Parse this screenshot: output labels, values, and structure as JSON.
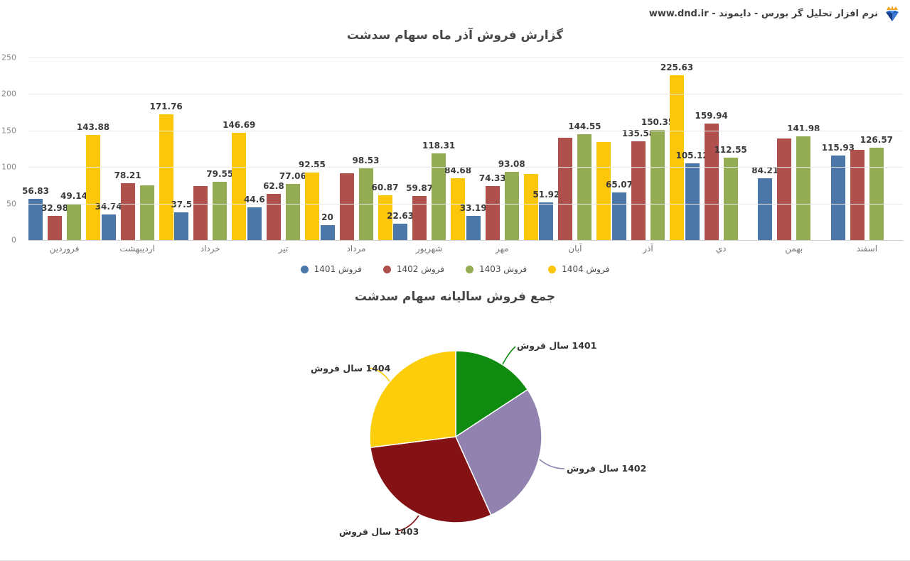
{
  "header": {
    "text": "نرم افزار تحلیل گر بورس - دایموند - www.dnd.ir",
    "logo": "diamond-crown-logo",
    "logo_colors": {
      "diamond": "#1f5fba",
      "facet": "#5a9bे3",
      "crown": "#f2a71b"
    }
  },
  "chart_data": [
    {
      "type": "bar",
      "title": "گزارش فروش آذر ماه سهام سدشت",
      "ylim": [
        0,
        250
      ],
      "y_ticks": [
        0,
        50,
        100,
        150,
        200,
        250
      ],
      "grid": "horizontal",
      "legend_position": "bottom",
      "categories": [
        "فروردین",
        "اردیبهشت",
        "خرداد",
        "تیر",
        "مرداد",
        "شهریور",
        "مهر",
        "آبان",
        "آذر",
        "دي",
        "بهمن",
        "اسفند"
      ],
      "series": [
        {
          "name": "فروش 1401",
          "color": "#4a77a8",
          "values": [
            56.83,
            34.74,
            37.5,
            44.6,
            20,
            22.63,
            33.19,
            51.92,
            65.07,
            105.12,
            84.21,
            115.93
          ],
          "labels": [
            "56.83",
            "34.74",
            "37.5",
            "44.6",
            "20",
            "22.63",
            "33.19",
            "51.92",
            "65.07",
            "105.12",
            "84.21",
            "115.93"
          ]
        },
        {
          "name": "فروش 1402",
          "color": "#b0504d",
          "values": [
            32.98,
            78.21,
            73.5,
            62.8,
            91,
            59.87,
            74.33,
            140.3,
            135.58,
            159.94,
            139.5,
            123.5
          ],
          "labels": [
            "32.98",
            "78.21",
            "",
            "62.8",
            "",
            "59.87",
            "74.33",
            "",
            "135.58",
            "159.94",
            "",
            ""
          ]
        },
        {
          "name": "فروش 1403",
          "color": "#94ad55",
          "values": [
            49.14,
            75.2,
            79.55,
            77.06,
            98.53,
            118.31,
            93.08,
            144.55,
            150.35,
            112.55,
            141.98,
            126.57
          ],
          "labels": [
            "49.14",
            "",
            "79.55",
            "77.06",
            "98.53",
            "118.31",
            "93.08",
            "144.55",
            "150.35",
            "112.55",
            "141.98",
            "126.57"
          ]
        },
        {
          "name": "فروش 1404",
          "color": "#fcc60b",
          "values": [
            143.88,
            171.76,
            146.69,
            92.55,
            60.87,
            84.68,
            90,
            134.3,
            225.63,
            null,
            null,
            null
          ],
          "labels": [
            "143.88",
            "171.76",
            "146.69",
            "92.55",
            "60.87",
            "84.68",
            "",
            "",
            "225.63",
            "",
            "",
            ""
          ]
        }
      ]
    },
    {
      "type": "pie",
      "title": "جمع فروش سالیانه سهام سدشت",
      "slices": [
        {
          "label": "فروش‎ سال‎ 1401",
          "color": "#0f8c10",
          "value": 671.74
        },
        {
          "label": "فروش‎ سال‎ 1402",
          "color": "#9182b0",
          "value": 1171.51
        },
        {
          "label": "فروش‎ سال‎ 1403",
          "color": "#841113",
          "value": 1266.87
        },
        {
          "label": "فروش‎ سال‎ 1404",
          "color": "#fccd0b",
          "value": 1150.36
        }
      ],
      "start_angle_deg": 0,
      "direction": "clockwise"
    }
  ]
}
